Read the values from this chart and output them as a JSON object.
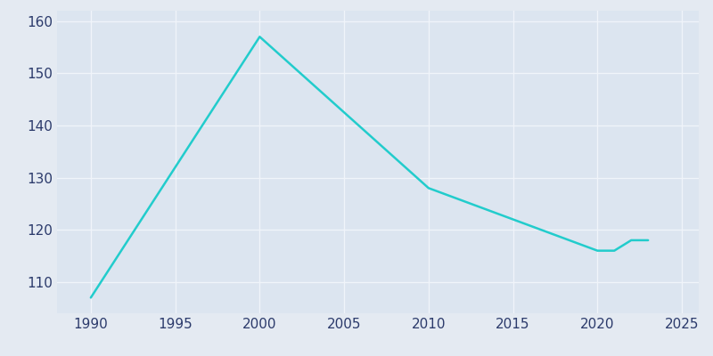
{
  "years": [
    1990,
    2000,
    2010,
    2015,
    2020,
    2021,
    2022,
    2023
  ],
  "population": [
    107,
    157,
    128,
    122,
    116,
    116,
    118,
    118
  ],
  "line_color": "#22CCCC",
  "bg_color": "#E4EAF2",
  "plot_bg_color": "#DCE5F0",
  "grid_color": "#F0F4FA",
  "axis_label_color": "#2B3A6B",
  "xlim": [
    1988,
    2026
  ],
  "ylim": [
    104,
    162
  ],
  "yticks": [
    110,
    120,
    130,
    140,
    150,
    160
  ],
  "xticks": [
    1990,
    1995,
    2000,
    2005,
    2010,
    2015,
    2020,
    2025
  ],
  "linewidth": 1.8,
  "figsize": [
    8.0,
    4.0
  ],
  "dpi": 100
}
